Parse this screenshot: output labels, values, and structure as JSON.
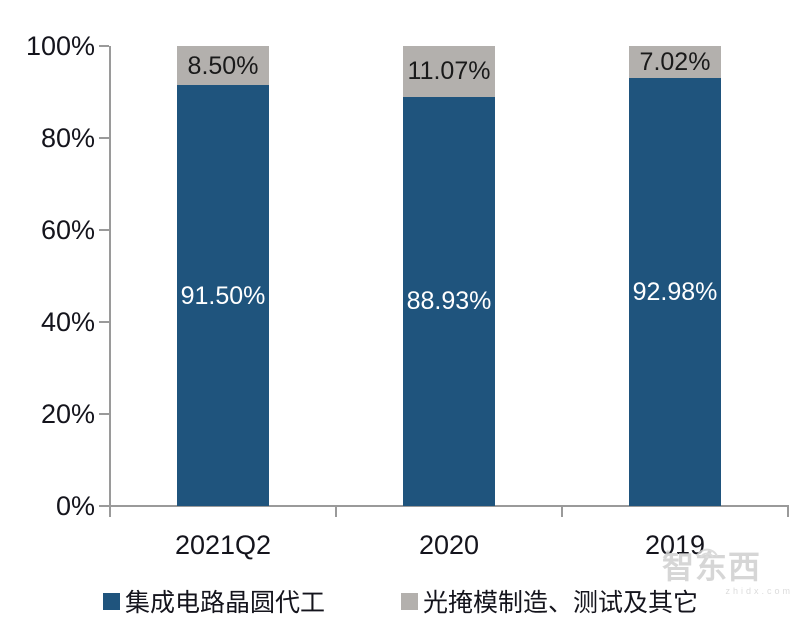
{
  "chart_data": {
    "type": "bar",
    "stacked": true,
    "percent_stacked": true,
    "title": "",
    "categories": [
      "2021Q2",
      "2020",
      "2019"
    ],
    "series": [
      {
        "name": "集成电路晶圆代工",
        "color": "#1f547d",
        "label_color": "#ffffff",
        "values": [
          91.5,
          88.93,
          92.98
        ],
        "labels": [
          "91.50%",
          "88.93%",
          "92.98%"
        ]
      },
      {
        "name": "光掩模制造、测试及其它",
        "color": "#b3b0ad",
        "label_color": "#1a1a1a",
        "values": [
          8.5,
          11.07,
          7.02
        ],
        "labels": [
          "8.50%",
          "11.07%",
          "7.02%"
        ]
      }
    ],
    "y_axis": {
      "min": 0,
      "max": 100,
      "tick_labels": [
        "0%",
        "20%",
        "40%",
        "60%",
        "80%",
        "100%"
      ]
    },
    "grid": false,
    "legend_position": "bottom"
  },
  "watermark": {
    "logo": "智东西",
    "domain": "zhidx.com"
  }
}
